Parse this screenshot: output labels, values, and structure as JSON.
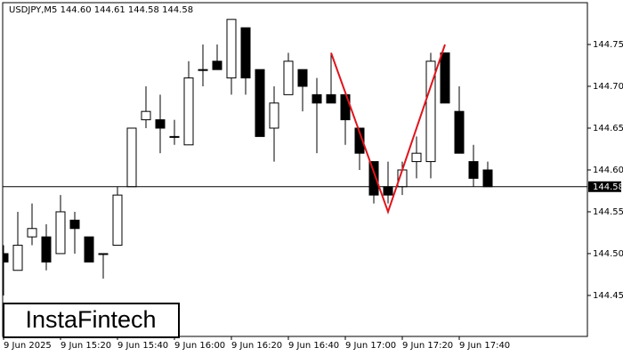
{
  "chart_data": {
    "type": "candlestick",
    "title": "USDJPY,M5  144.60 144.61 144.58 144.58",
    "watermark": "InstaFintech",
    "categories": [
      "9 Jun 2025",
      null,
      null,
      null,
      "9 Jun 15:20",
      null,
      null,
      null,
      "9 Jun 15:40",
      null,
      null,
      null,
      "9 Jun 16:00",
      null,
      null,
      null,
      "9 Jun 16:20",
      null,
      null,
      null,
      "9 Jun 16:40",
      null,
      null,
      null,
      "9 Jun 17:00",
      null,
      null,
      null,
      "9 Jun 17:20",
      null,
      null,
      null,
      "9 Jun 17:40",
      null,
      null
    ],
    "open": [
      144.5,
      144.48,
      144.52,
      144.52,
      144.5,
      144.54,
      144.52,
      144.5,
      144.51,
      144.58,
      144.66,
      144.66,
      144.64,
      144.63,
      144.72,
      144.73,
      144.71,
      144.77,
      144.72,
      144.65,
      144.69,
      144.72,
      144.69,
      144.69,
      144.69,
      144.65,
      144.61,
      144.58,
      144.58,
      144.61,
      144.61,
      144.74,
      144.67,
      144.61,
      144.6
    ],
    "high": [
      144.51,
      144.55,
      144.56,
      144.535,
      144.57,
      144.55,
      144.52,
      144.5,
      144.58,
      144.65,
      144.7,
      144.69,
      144.66,
      144.73,
      144.75,
      144.75,
      144.78,
      144.77,
      144.72,
      144.7,
      144.74,
      144.72,
      144.71,
      144.74,
      144.69,
      144.65,
      144.61,
      144.61,
      144.61,
      144.64,
      144.74,
      144.74,
      144.7,
      144.63,
      144.61
    ],
    "low": [
      144.45,
      144.48,
      144.51,
      144.48,
      144.5,
      144.5,
      144.49,
      144.47,
      144.51,
      144.58,
      144.65,
      144.62,
      144.63,
      144.63,
      144.7,
      144.72,
      144.69,
      144.69,
      144.64,
      144.61,
      144.69,
      144.67,
      144.62,
      144.68,
      144.63,
      144.6,
      144.56,
      144.56,
      144.57,
      144.59,
      144.59,
      144.68,
      144.62,
      144.58,
      144.58
    ],
    "close": [
      144.49,
      144.51,
      144.53,
      144.49,
      144.55,
      144.53,
      144.49,
      144.5,
      144.57,
      144.65,
      144.67,
      144.65,
      144.64,
      144.71,
      144.72,
      144.72,
      144.78,
      144.71,
      144.64,
      144.68,
      144.73,
      144.7,
      144.68,
      144.68,
      144.66,
      144.62,
      144.57,
      144.57,
      144.6,
      144.62,
      144.73,
      144.68,
      144.62,
      144.59,
      144.58
    ],
    "up_color": "#ffffff",
    "down_color": "#000000",
    "ylim": [
      144.401,
      144.8
    ],
    "yticks": [
      144.75,
      {
        "value": 144.7,
        "label": "144.70"
      },
      144.65,
      {
        "value": 144.6,
        "label": "144.60"
      },
      144.55,
      {
        "value": 144.5,
        "label": "144.50"
      },
      144.45
    ],
    "current_price": 144.58,
    "pattern": {
      "color": "#e0141c",
      "candles": [
        23,
        27,
        31
      ],
      "values": [
        144.74,
        144.55,
        144.75
      ]
    },
    "grid": false
  }
}
